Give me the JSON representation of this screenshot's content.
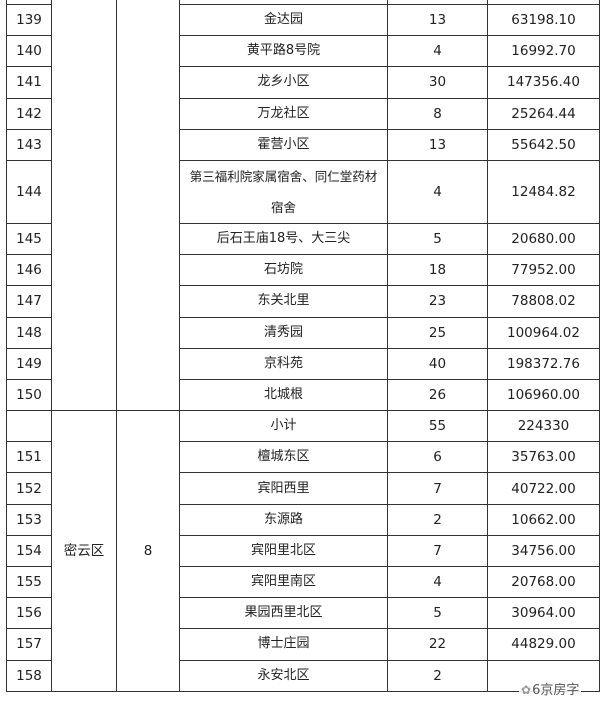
{
  "rows_group1": [
    {
      "no": "139",
      "name": "金达园",
      "count": "13",
      "area": "63198.10"
    },
    {
      "no": "140",
      "name": "黄平路8号院",
      "count": "4",
      "area": "16992.70"
    },
    {
      "no": "141",
      "name": "龙乡小区",
      "count": "30",
      "area": "147356.40"
    },
    {
      "no": "142",
      "name": "万龙社区",
      "count": "8",
      "area": "25264.44"
    },
    {
      "no": "143",
      "name": "霍营小区",
      "count": "13",
      "area": "55642.50"
    },
    {
      "no": "144",
      "name_line1": "第三福利院家属宿舍、同仁堂药材",
      "name_line2": "宿舍",
      "count": "4",
      "area": "12484.82"
    },
    {
      "no": "145",
      "name": "后石王庙18号、大三尖",
      "count": "5",
      "area": "20680.00"
    },
    {
      "no": "146",
      "name": "石坊院",
      "count": "18",
      "area": "77952.00"
    },
    {
      "no": "147",
      "name": "东关北里",
      "count": "23",
      "area": "78808.02"
    },
    {
      "no": "148",
      "name": "清秀园",
      "count": "25",
      "area": "100964.02"
    },
    {
      "no": "149",
      "name": "京科苑",
      "count": "40",
      "area": "198372.76"
    },
    {
      "no": "150",
      "name": "北城根",
      "count": "26",
      "area": "106960.00"
    }
  ],
  "miyun": {
    "district": "密云区",
    "district_count": "8",
    "subtotal": {
      "label": "小计",
      "count": "55",
      "area": "224330"
    },
    "rows": [
      {
        "no": "151",
        "name": "檀城东区",
        "count": "6",
        "area": "35763.00"
      },
      {
        "no": "152",
        "name": "宾阳西里",
        "count": "7",
        "area": "40722.00"
      },
      {
        "no": "153",
        "name": "东源路",
        "count": "2",
        "area": "10662.00"
      },
      {
        "no": "154",
        "name": "宾阳里北区",
        "count": "7",
        "area": "34756.00"
      },
      {
        "no": "155",
        "name": "宾阳里南区",
        "count": "4",
        "area": "20768.00"
      },
      {
        "no": "156",
        "name": "果园西里北区",
        "count": "5",
        "area": "30964.00"
      },
      {
        "no": "157",
        "name": "博士庄园",
        "count": "22",
        "area": "44829.00"
      },
      {
        "no": "158",
        "name": "永安北区",
        "count": "2",
        "area": ""
      }
    ]
  },
  "watermark": {
    "icon": "wechat-icon",
    "text": "6京房字"
  }
}
